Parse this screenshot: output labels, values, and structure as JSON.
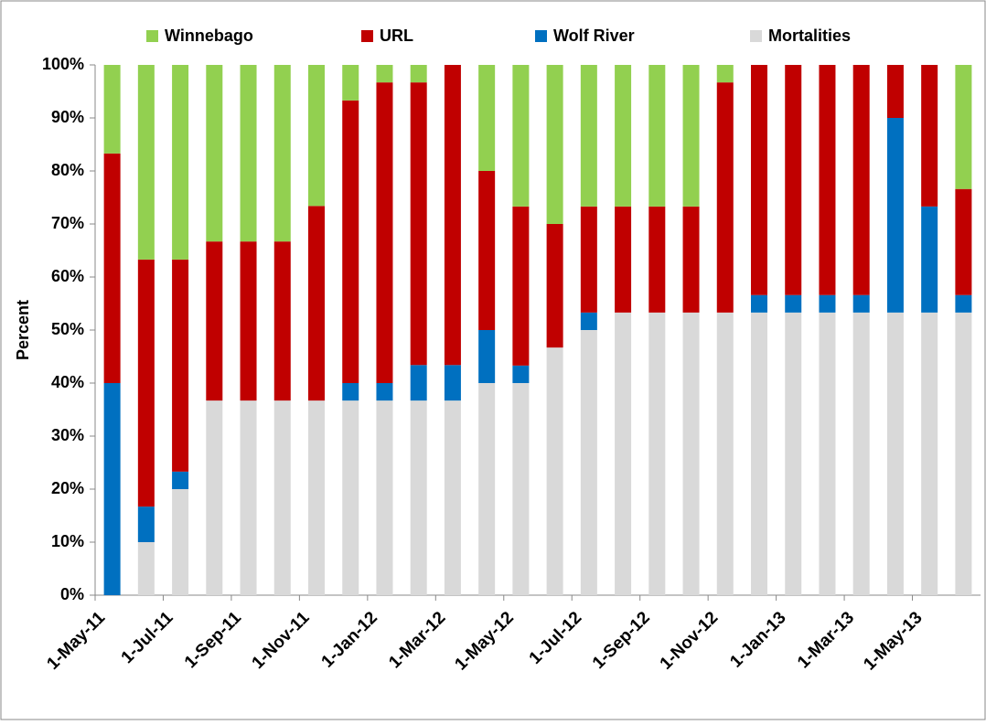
{
  "chart_data": {
    "type": "stacked_bar",
    "y_label": "Percent",
    "categories": [
      "1-May-11",
      null,
      "1-Jul-11",
      null,
      "1-Sep-11",
      null,
      "1-Nov-11",
      null,
      "1-Jan-12",
      null,
      "1-Mar-12",
      null,
      "1-May-12",
      null,
      "1-Jul-12",
      null,
      "1-Sep-12",
      null,
      "1-Nov-12",
      null,
      "1-Jan-13",
      null,
      "1-Mar-13",
      null,
      "1-May-13",
      null
    ],
    "series": [
      {
        "name": "Winnebago",
        "color": "#92d050",
        "values": [
          16.7,
          36.7,
          36.7,
          33.3,
          33.3,
          33.3,
          26.6,
          6.7,
          3.3,
          3.3,
          0,
          20,
          26.7,
          30,
          26.7,
          26.7,
          26.7,
          26.7,
          3.3,
          0,
          0,
          0,
          0,
          0,
          0,
          23.4
        ]
      },
      {
        "name": "URL",
        "color": "#c00000",
        "values": [
          43.3,
          46.6,
          40,
          30,
          30,
          30,
          36.7,
          53.3,
          56.7,
          53.3,
          56.6,
          30,
          30,
          23.3,
          20,
          20,
          20,
          20,
          43.4,
          43.4,
          43.4,
          43.4,
          43.4,
          10,
          26.7,
          20
        ]
      },
      {
        "name": "Wolf River",
        "color": "#0070c0",
        "values": [
          40,
          6.7,
          3.3,
          0,
          0,
          0,
          0,
          3.3,
          3.3,
          6.7,
          6.7,
          10,
          3.3,
          0,
          3.3,
          0,
          0,
          0,
          0,
          3.3,
          3.3,
          3.3,
          3.3,
          36.7,
          20,
          3.3
        ]
      },
      {
        "name": "Mortalities",
        "color": "#d9d9d9",
        "values": [
          0,
          10,
          20,
          36.7,
          36.7,
          36.7,
          36.7,
          36.7,
          36.7,
          36.7,
          36.7,
          40,
          40,
          46.7,
          50,
          53.3,
          53.3,
          53.3,
          53.3,
          53.3,
          53.3,
          53.3,
          53.3,
          53.3,
          53.3,
          53.3
        ]
      }
    ],
    "ylim": [
      0,
      100
    ],
    "yticks": [
      {
        "value": 0,
        "label": "0%"
      },
      {
        "value": 10,
        "label": "10%"
      },
      {
        "value": 20,
        "label": "20%"
      },
      {
        "value": 30,
        "label": "30%"
      },
      {
        "value": 40,
        "label": "40%"
      },
      {
        "value": 50,
        "label": "50%"
      },
      {
        "value": 60,
        "label": "60%"
      },
      {
        "value": 70,
        "label": "70%"
      },
      {
        "value": 80,
        "label": "80%"
      },
      {
        "value": 90,
        "label": "90%"
      },
      {
        "value": 100,
        "label": "100%"
      }
    ],
    "legend": "top"
  }
}
